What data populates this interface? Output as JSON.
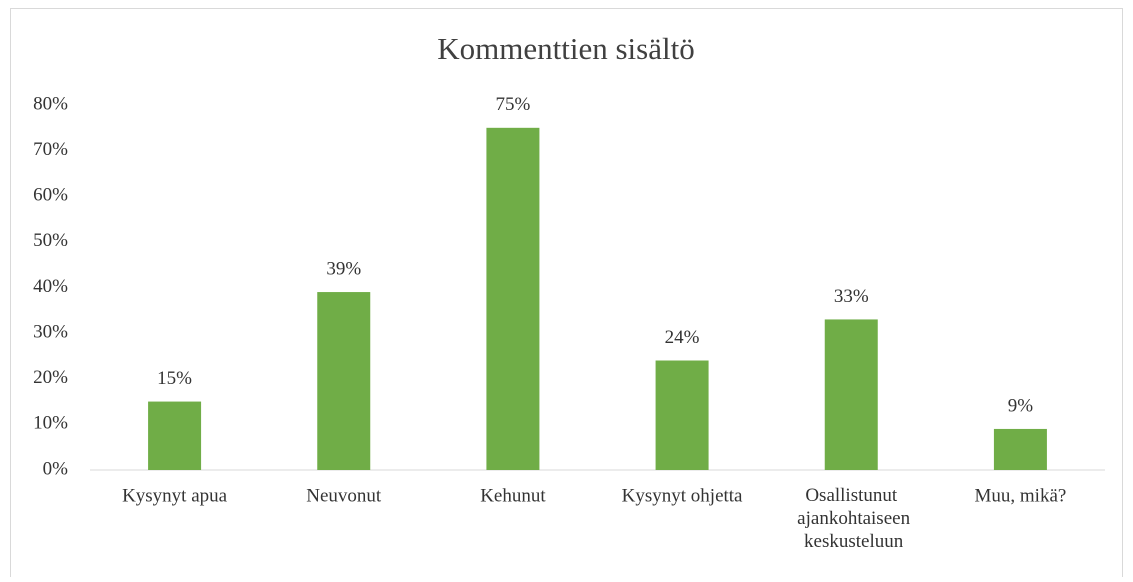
{
  "chart_data": {
    "type": "bar",
    "title": "Kommenttien sisältö",
    "categories": [
      "Kysynyt apua",
      "Neuvonut",
      "Kehunut",
      "Kysynyt ohjetta",
      "Osallistunut ajankohtaiseen keskusteluun",
      "Muu, mikä?"
    ],
    "values": [
      15,
      39,
      75,
      24,
      33,
      9
    ],
    "value_labels": [
      "15%",
      "39%",
      "75%",
      "24%",
      "33%",
      "9%"
    ],
    "color": "#70ad47",
    "ylim": [
      0,
      80
    ],
    "yticks": [
      {
        "value": 0,
        "label": "0%"
      },
      {
        "value": 10,
        "label": "10%"
      },
      {
        "value": 20,
        "label": "20%"
      },
      {
        "value": 30,
        "label": "30%"
      },
      {
        "value": 40,
        "label": "40%"
      },
      {
        "value": 50,
        "label": "50%"
      },
      {
        "value": 60,
        "label": "60%"
      },
      {
        "value": 70,
        "label": "70%"
      },
      {
        "value": 80,
        "label": "80%"
      }
    ],
    "grid": false
  }
}
